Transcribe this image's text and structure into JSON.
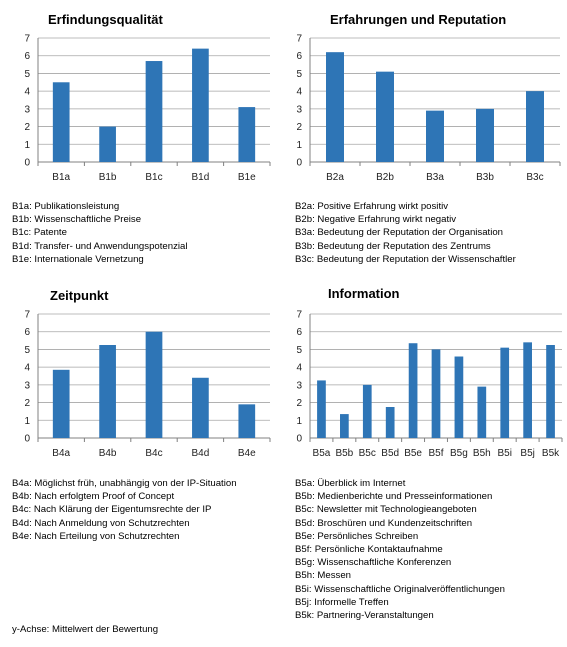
{
  "colors": {
    "bar": "#2E75B6",
    "grid": "#a6a6a6",
    "axis": "#808080"
  },
  "footnote": "y-Achse: Mittelwert der Bewertung",
  "chart_data": [
    {
      "type": "bar",
      "title": "Erfindungsqualität",
      "categories": [
        "B1a",
        "B1b",
        "B1c",
        "B1d",
        "B1e"
      ],
      "values": [
        4.5,
        2.0,
        5.7,
        6.4,
        3.1
      ],
      "ylim": [
        0,
        7
      ],
      "yticks": [
        0,
        1,
        2,
        3,
        4,
        5,
        6,
        7
      ],
      "grid": true,
      "legend": [
        "B1a: Publikationsleistung",
        "B1b: Wissenschaftliche Preise",
        "B1c: Patente",
        "B1d: Transfer- und Anwendungspotenzial",
        "B1e: Internationale Vernetzung"
      ]
    },
    {
      "type": "bar",
      "title": "Erfahrungen und Reputation",
      "categories": [
        "B2a",
        "B2b",
        "B3a",
        "B3b",
        "B3c"
      ],
      "values": [
        6.2,
        5.1,
        2.9,
        3.0,
        4.0
      ],
      "ylim": [
        0,
        7
      ],
      "yticks": [
        0,
        1,
        2,
        3,
        4,
        5,
        6,
        7
      ],
      "grid": true,
      "legend": [
        "B2a: Positive Erfahrung wirkt positiv",
        "B2b: Negative Erfahrung wirkt negativ",
        "B3a: Bedeutung der Reputation der Organisation",
        "B3b: Bedeutung der Reputation des Zentrums",
        "B3c: Bedeutung der Reputation der Wissenschaftler"
      ]
    },
    {
      "type": "bar",
      "title": "Zeitpunkt",
      "categories": [
        "B4a",
        "B4b",
        "B4c",
        "B4d",
        "B4e"
      ],
      "values": [
        3.85,
        5.25,
        6.0,
        3.4,
        1.9
      ],
      "ylim": [
        0,
        7
      ],
      "yticks": [
        0,
        1,
        2,
        3,
        4,
        5,
        6,
        7
      ],
      "grid": true,
      "legend": [
        "B4a: Möglichst früh, unabhängig von der IP-Situation",
        "B4b: Nach erfolgtem Proof of Concept",
        "B4c: Nach Klärung der Eigentumsrechte der IP",
        "B4d: Nach Anmeldung von Schutzrechten",
        "B4e: Nach Erteilung von Schutzrechten"
      ]
    },
    {
      "type": "bar",
      "title": "Information",
      "categories": [
        "B5a",
        "B5b",
        "B5c",
        "B5d",
        "B5e",
        "B5f",
        "B5g",
        "B5h",
        "B5i",
        "B5j",
        "B5k"
      ],
      "values": [
        3.25,
        1.35,
        3.0,
        1.75,
        5.35,
        5.0,
        4.6,
        2.9,
        5.1,
        5.4,
        5.25
      ],
      "ylim": [
        0,
        7
      ],
      "yticks": [
        0,
        1,
        2,
        3,
        4,
        5,
        6,
        7
      ],
      "grid": true,
      "legend": [
        "B5a: Überblick im Internet",
        "B5b: Medienberichte und Presseinformationen",
        "B5c: Newsletter mit Technologieangeboten",
        "B5d: Broschüren und Kundenzeitschriften",
        "B5e: Persönliches Schreiben",
        "B5f: Persönliche Kontaktaufnahme",
        "B5g: Wissenschaftliche Konferenzen",
        "B5h: Messen",
        "B5i: Wissenschaftliche Originalveröffentlichungen",
        "B5j: Informelle Treffen",
        "B5k: Partnering-Veranstaltungen"
      ]
    }
  ]
}
